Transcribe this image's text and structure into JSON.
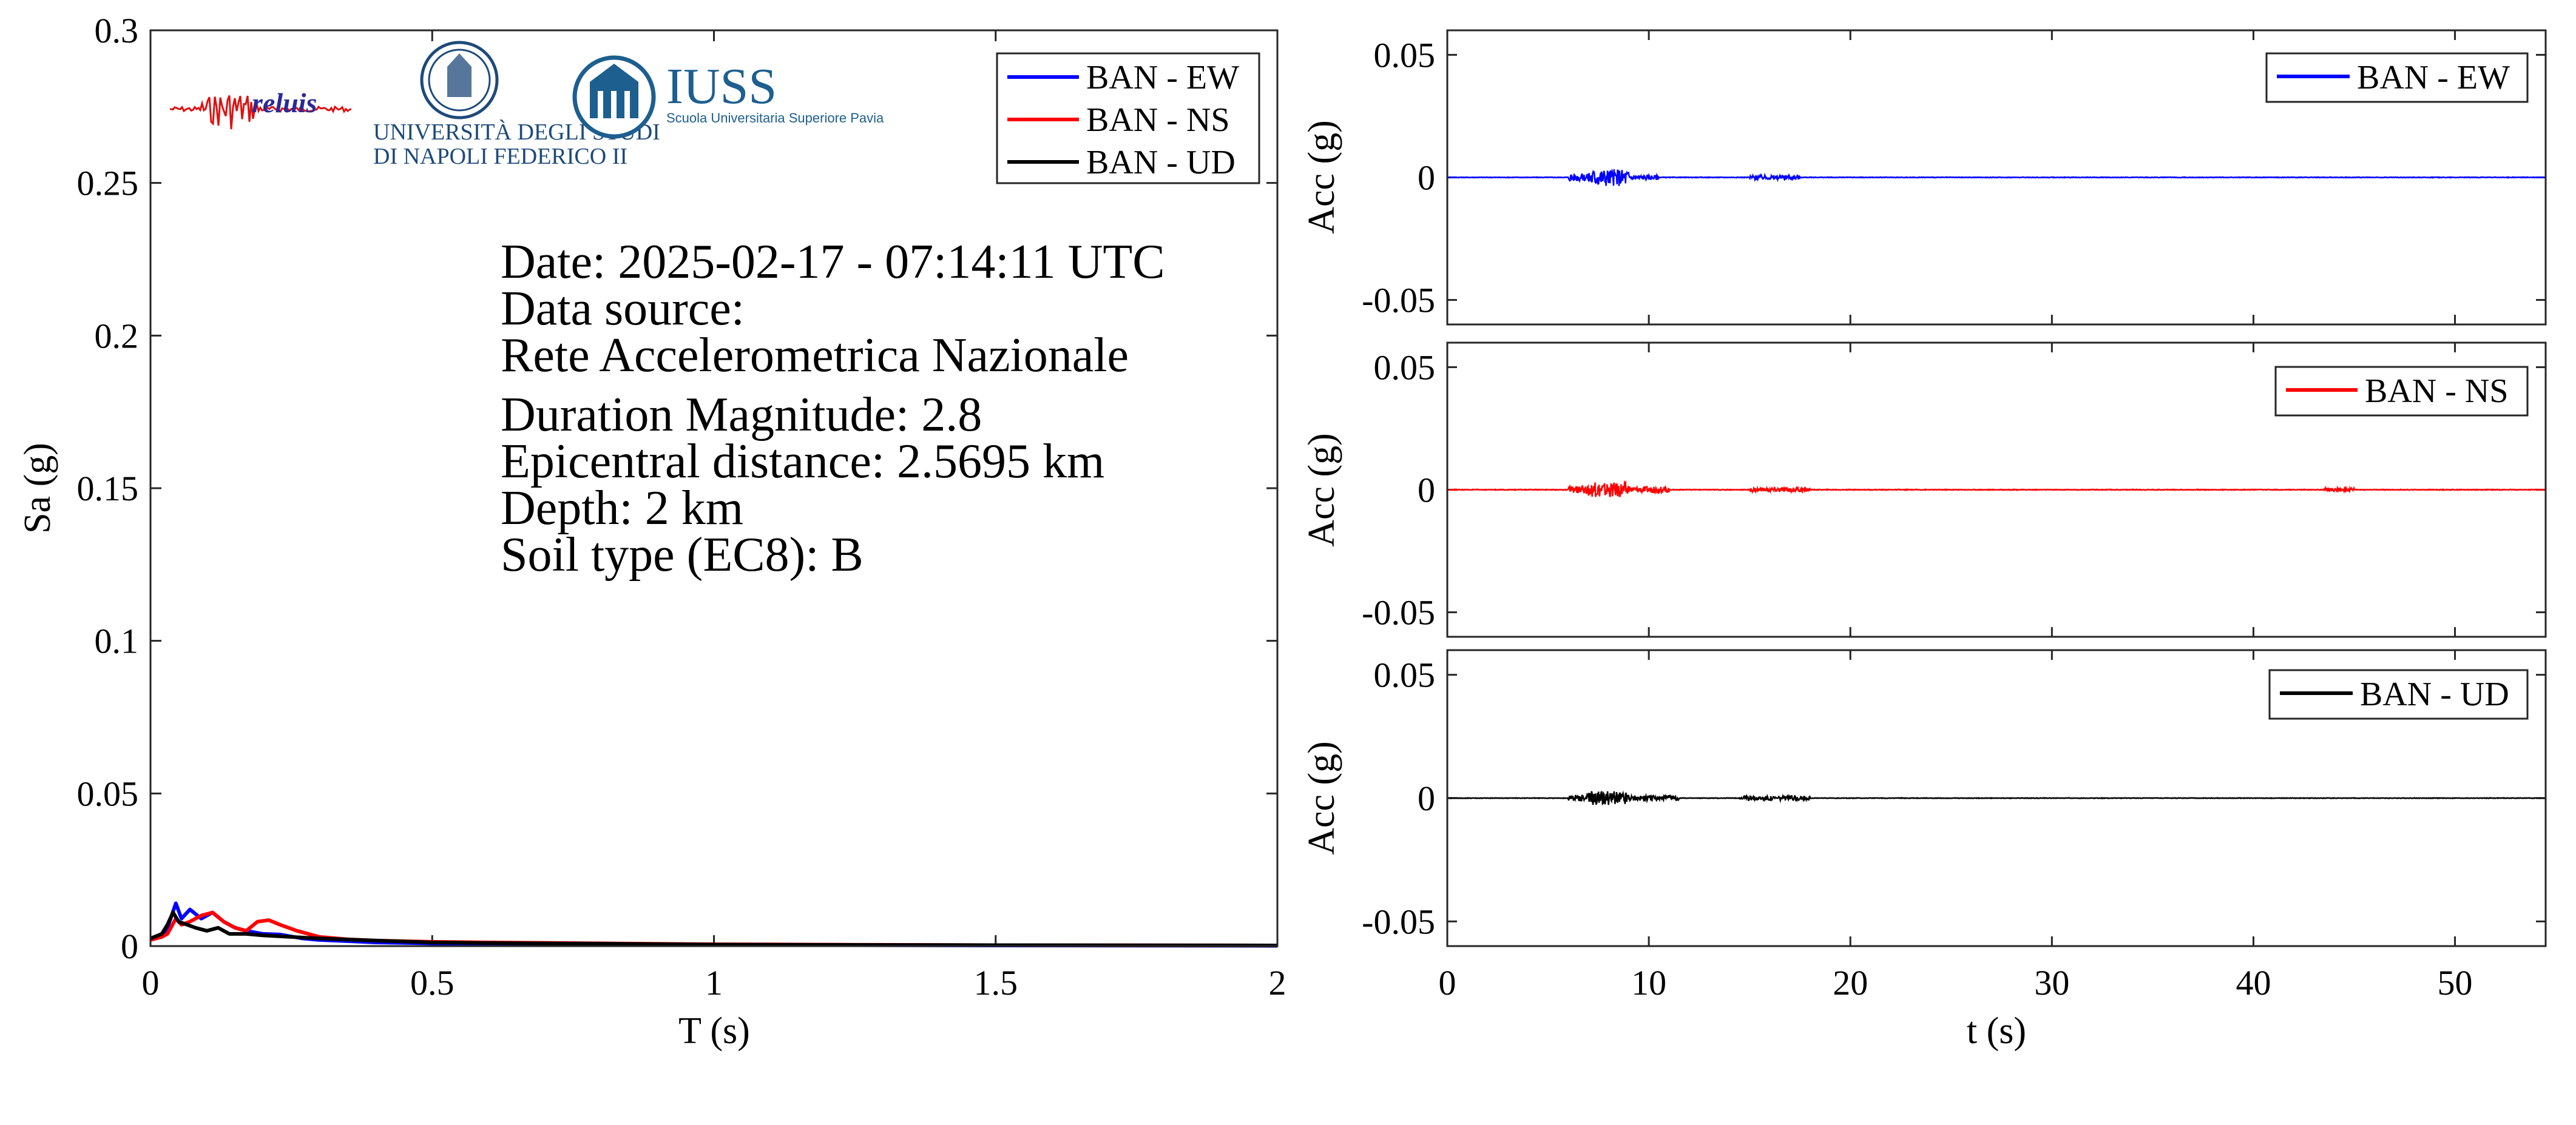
{
  "chart_data": [
    {
      "type": "line",
      "panel": "response-spectrum",
      "xlabel": "T (s)",
      "ylabel": "Sa (g)",
      "xlim": [
        0,
        2
      ],
      "ylim": [
        0,
        0.3
      ],
      "xticks": [
        0,
        0.5,
        1,
        1.5,
        2
      ],
      "xtick_labels": [
        "0",
        "0.5",
        "1",
        "1.5",
        "2"
      ],
      "yticks": [
        0,
        0.05,
        0.1,
        0.15,
        0.2,
        0.25,
        0.3
      ],
      "ytick_labels": [
        "0",
        "0.05",
        "0.1",
        "0.15",
        "0.2",
        "0.25",
        "0.3"
      ],
      "grid": false,
      "legend_position": "top-right",
      "series": [
        {
          "name": "BAN - EW",
          "color": "#0000ff",
          "x": [
            0,
            0.02,
            0.03,
            0.045,
            0.055,
            0.07,
            0.09,
            0.11,
            0.13,
            0.15,
            0.17,
            0.2,
            0.23,
            0.27,
            0.3,
            0.35,
            0.4,
            0.5,
            0.6,
            0.8,
            1.0,
            1.5,
            2.0
          ],
          "y": [
            0.0025,
            0.003,
            0.006,
            0.014,
            0.009,
            0.012,
            0.009,
            0.011,
            0.008,
            0.006,
            0.005,
            0.004,
            0.0038,
            0.0025,
            0.002,
            0.0016,
            0.0012,
            0.0009,
            0.0007,
            0.0005,
            0.0004,
            0.0002,
            0.0001
          ]
        },
        {
          "name": "BAN - NS",
          "color": "#ff0000",
          "x": [
            0,
            0.02,
            0.03,
            0.045,
            0.055,
            0.07,
            0.09,
            0.11,
            0.13,
            0.15,
            0.17,
            0.19,
            0.21,
            0.23,
            0.26,
            0.3,
            0.35,
            0.4,
            0.5,
            0.6,
            0.8,
            1.0,
            1.5,
            2.0
          ],
          "y": [
            0.002,
            0.003,
            0.004,
            0.009,
            0.007,
            0.008,
            0.01,
            0.011,
            0.008,
            0.006,
            0.005,
            0.008,
            0.0085,
            0.007,
            0.005,
            0.003,
            0.0022,
            0.0018,
            0.0014,
            0.0012,
            0.0009,
            0.0006,
            0.0003,
            0.0002
          ]
        },
        {
          "name": "BAN - UD",
          "color": "#000000",
          "x": [
            0,
            0.02,
            0.03,
            0.04,
            0.05,
            0.065,
            0.08,
            0.1,
            0.12,
            0.14,
            0.17,
            0.2,
            0.25,
            0.3,
            0.4,
            0.5,
            0.6,
            0.8,
            1.0,
            1.5,
            2.0
          ],
          "y": [
            0.0025,
            0.004,
            0.007,
            0.011,
            0.008,
            0.007,
            0.006,
            0.005,
            0.006,
            0.004,
            0.004,
            0.0035,
            0.003,
            0.0025,
            0.0018,
            0.0012,
            0.001,
            0.0008,
            0.0005,
            0.0003,
            0.0002
          ]
        }
      ]
    },
    {
      "type": "line",
      "panel": "time-history-ew",
      "ylabel": "Acc (g)",
      "xlim": [
        0,
        54.5
      ],
      "ylim": [
        -0.06,
        0.06
      ],
      "xticks": [
        0,
        10,
        20,
        30,
        40,
        50
      ],
      "yticks": [
        -0.05,
        0,
        0.05
      ],
      "ytick_labels": [
        "-0.05",
        "0",
        "0.05"
      ],
      "legend_position": "top-right",
      "series": [
        {
          "name": "BAN - EW",
          "color": "#0000ff",
          "bursts": [
            {
              "start": 6.0,
              "end": 7.0,
              "amp": 0.0016
            },
            {
              "start": 7.0,
              "end": 9.0,
              "amp": 0.0035
            },
            {
              "start": 9.0,
              "end": 10.5,
              "amp": 0.001
            },
            {
              "start": 15.0,
              "end": 17.5,
              "amp": 0.0009
            }
          ],
          "background_amp": 0.00012
        }
      ]
    },
    {
      "type": "line",
      "panel": "time-history-ns",
      "ylabel": "Acc (g)",
      "xlim": [
        0,
        54.5
      ],
      "ylim": [
        -0.06,
        0.06
      ],
      "xticks": [
        0,
        10,
        20,
        30,
        40,
        50
      ],
      "yticks": [
        -0.05,
        0,
        0.05
      ],
      "ytick_labels": [
        "-0.05",
        "0",
        "0.05"
      ],
      "legend_position": "top-right",
      "series": [
        {
          "name": "BAN - NS",
          "color": "#ff0000",
          "bursts": [
            {
              "start": 6.0,
              "end": 7.0,
              "amp": 0.0015
            },
            {
              "start": 7.0,
              "end": 9.0,
              "amp": 0.003
            },
            {
              "start": 9.0,
              "end": 11.0,
              "amp": 0.0012
            },
            {
              "start": 15.0,
              "end": 18.0,
              "amp": 0.0009
            },
            {
              "start": 43.5,
              "end": 45.0,
              "amp": 0.0007
            }
          ],
          "background_amp": 0.00014
        }
      ]
    },
    {
      "type": "line",
      "panel": "time-history-ud",
      "xlabel": "t (s)",
      "ylabel": "Acc (g)",
      "xlim": [
        0,
        54.5
      ],
      "ylim": [
        -0.06,
        0.06
      ],
      "xticks": [
        0,
        10,
        20,
        30,
        40,
        50
      ],
      "xtick_labels": [
        "0",
        "10",
        "20",
        "30",
        "40",
        "50"
      ],
      "yticks": [
        -0.05,
        0,
        0.05
      ],
      "ytick_labels": [
        "-0.05",
        "0",
        "0.05"
      ],
      "legend_position": "top-right",
      "series": [
        {
          "name": "BAN - UD",
          "color": "#000000",
          "bursts": [
            {
              "start": 6.0,
              "end": 7.0,
              "amp": 0.0014
            },
            {
              "start": 7.0,
              "end": 9.0,
              "amp": 0.0028
            },
            {
              "start": 9.0,
              "end": 11.5,
              "amp": 0.0011
            },
            {
              "start": 14.5,
              "end": 18.0,
              "amp": 0.0009
            }
          ],
          "background_amp": 0.0001
        }
      ]
    }
  ],
  "event_info": {
    "date": "Date: 2025-02-17 - 07:14:11 UTC",
    "source_label": "Data source:",
    "source_name": "Rete Accelerometrica Nazionale",
    "magnitude": "Duration Magnitude: 2.8",
    "distance": "Epicentral distance: 2.5695 km",
    "depth": "Depth: 2 km",
    "soil": "Soil type (EC8): B"
  },
  "logos": {
    "reluis": "reluis",
    "unina_line1": "UNIVERSITÀ DEGLI STUDI",
    "unina_line2": "DI NAPOLI FEDERICO II",
    "iuss_name": "IUSS",
    "iuss_subtitle": "Scuola Universitaria Superiore Pavia"
  }
}
